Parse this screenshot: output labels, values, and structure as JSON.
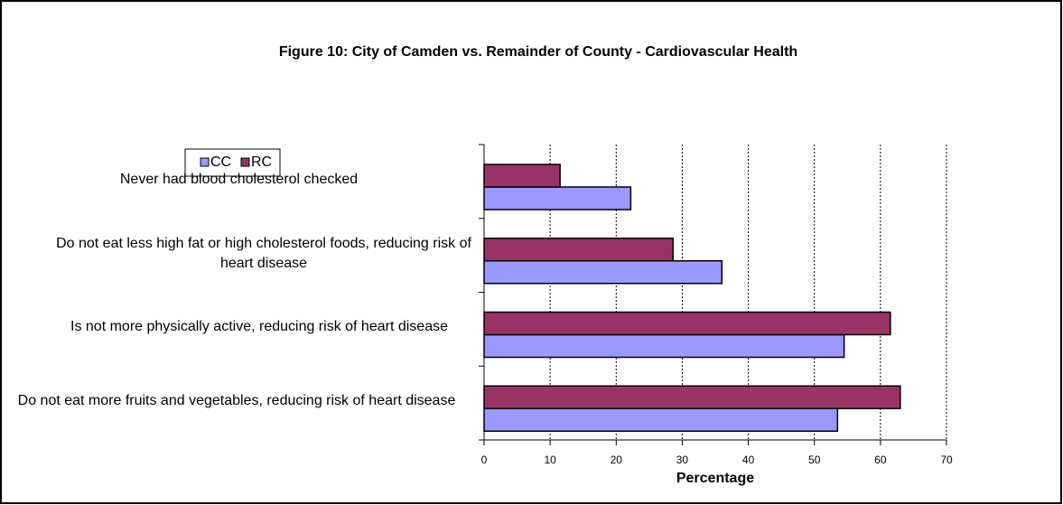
{
  "chart_data": {
    "type": "bar",
    "orientation": "horizontal",
    "title": "Figure 10:  City of Camden vs. Remainder of County - Cardiovascular Health",
    "categories": [
      "Never had blood cholesterol checked",
      "Do not eat less high fat or high cholesterol foods, reducing risk of heart disease",
      "Is not more physically active, reducing risk of heart disease",
      "Do not eat more fruits and vegetables, reducing risk of heart disease"
    ],
    "series": [
      {
        "name": "CC",
        "color": "#9999ff",
        "values": [
          22.2,
          36.0,
          54.5,
          53.5
        ]
      },
      {
        "name": "RC",
        "color": "#993366",
        "values": [
          11.5,
          28.6,
          61.5,
          63.0
        ]
      }
    ],
    "xlabel": "Percentage",
    "xlim": [
      0,
      70
    ],
    "xticks": [
      0,
      10,
      20,
      30,
      40,
      50,
      60,
      70
    ],
    "grid": true
  }
}
